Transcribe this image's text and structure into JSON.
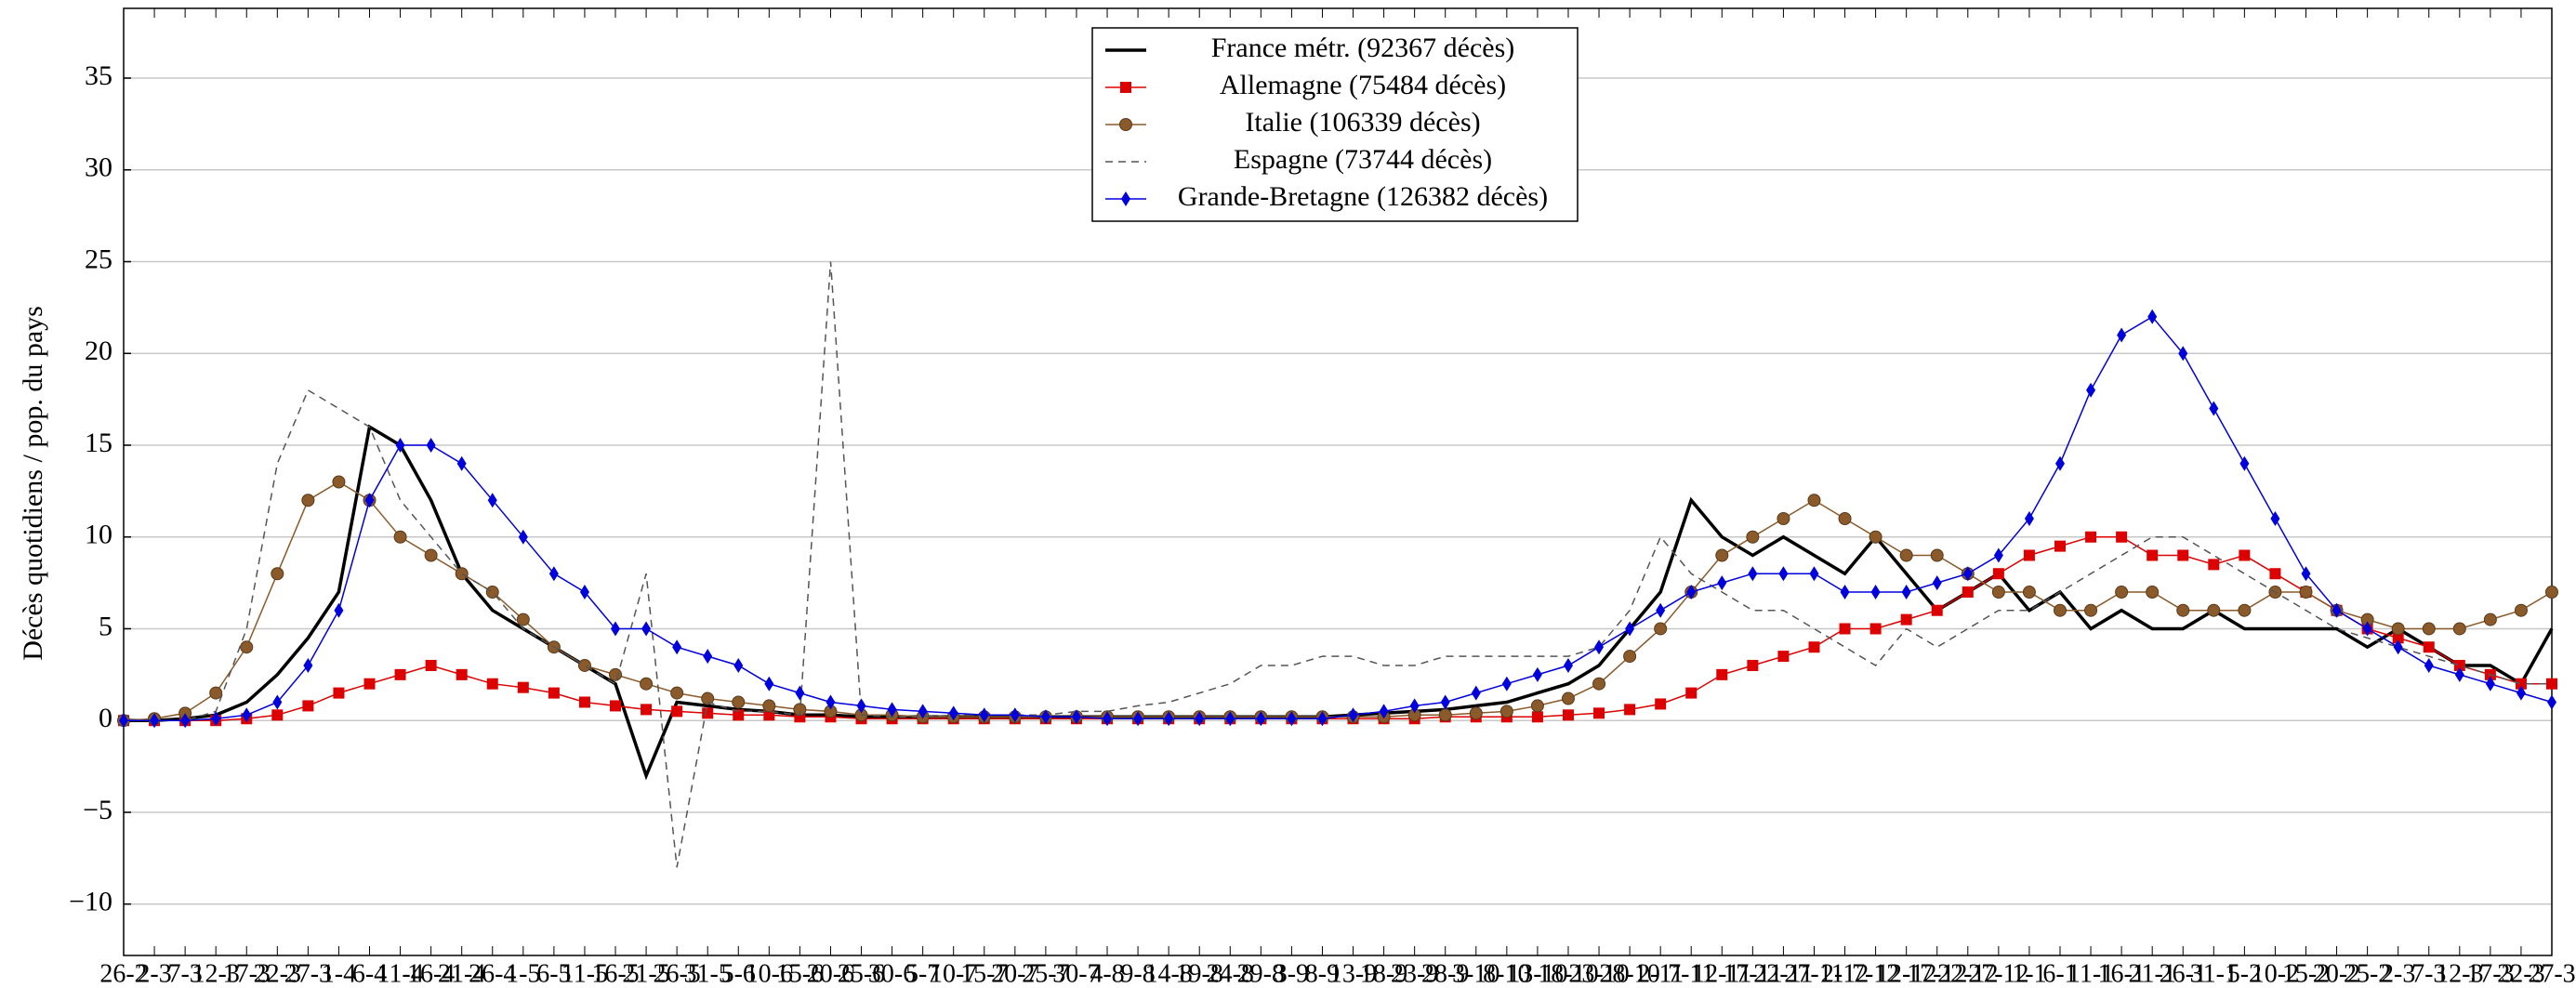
{
  "chart_data": {
    "type": "line",
    "ylabel": "Décès quotidiens / pop. du pays",
    "categories": [
      "26-2",
      "2-3",
      "7-3",
      "12-3",
      "17-3",
      "22-3",
      "27-3",
      "1-4",
      "6-4",
      "11-4",
      "16-4",
      "21-4",
      "26-4",
      "1-5",
      "6-5",
      "11-5",
      "16-5",
      "21-5",
      "26-5",
      "31-5",
      "5-6",
      "10-6",
      "15-6",
      "20-6",
      "25-6",
      "30-6",
      "5-7",
      "10-7",
      "15-7",
      "20-7",
      "25-7",
      "30-7",
      "4-8",
      "9-8",
      "14-8",
      "19-8",
      "24-8",
      "29-8",
      "3-9",
      "8-9",
      "13-9",
      "18-9",
      "23-9",
      "28-9",
      "3-10",
      "8-10",
      "13-10",
      "18-10",
      "23-10",
      "28-10",
      "2-11",
      "7-11",
      "12-11",
      "17-11",
      "22-11",
      "27-11",
      "2-12",
      "7-12",
      "12-12",
      "17-12",
      "22-12",
      "27-12",
      "1-1",
      "6-1",
      "11-1",
      "16-1",
      "21-1",
      "26-1",
      "31-1",
      "5-2",
      "10-2",
      "15-2",
      "20-2",
      "25-2",
      "2-3",
      "7-3",
      "12-3",
      "17-3",
      "22-3",
      "27-3"
    ],
    "series": [
      {
        "name": "France métr. (92367 décès)",
        "color": "#000000",
        "linestyle": "solid",
        "marker": null,
        "values": [
          0,
          0,
          0.1,
          0.3,
          1,
          2.5,
          4.5,
          7,
          16,
          15,
          12,
          8,
          6,
          5,
          4,
          3,
          2,
          -3,
          1,
          0.8,
          0.6,
          0.5,
          0.3,
          0.3,
          0.2,
          0.2,
          0.2,
          0.2,
          0.2,
          0.2,
          0.2,
          0.2,
          0.2,
          0.2,
          0.2,
          0.2,
          0.2,
          0.2,
          0.2,
          0.2,
          0.3,
          0.4,
          0.5,
          0.6,
          0.8,
          1,
          1.5,
          2,
          3,
          5,
          7,
          12,
          10,
          9,
          10,
          9,
          8,
          10,
          8,
          6,
          7,
          8,
          6,
          7,
          5,
          6,
          5,
          5,
          6,
          5,
          5,
          5,
          5,
          4,
          5,
          4,
          3,
          3,
          2,
          5
        ]
      },
      {
        "name": "Allemagne (75484 décès)",
        "color": "#dd0000",
        "linestyle": "solid",
        "marker": "square",
        "values": [
          0,
          0,
          0,
          0,
          0.1,
          0.3,
          0.8,
          1.5,
          2,
          2.5,
          3,
          2.5,
          2,
          1.8,
          1.5,
          1,
          0.8,
          0.6,
          0.5,
          0.4,
          0.3,
          0.3,
          0.2,
          0.2,
          0.1,
          0.1,
          0.1,
          0.1,
          0.1,
          0.1,
          0.1,
          0.1,
          0.1,
          0.1,
          0.1,
          0.1,
          0.1,
          0.1,
          0.1,
          0.1,
          0.1,
          0.1,
          0.1,
          0.2,
          0.2,
          0.2,
          0.2,
          0.3,
          0.4,
          0.6,
          0.9,
          1.5,
          2.5,
          3,
          3.5,
          4,
          5,
          5,
          5.5,
          6,
          7,
          8,
          9,
          9.5,
          10,
          10,
          9,
          9,
          8.5,
          9,
          8,
          7,
          6,
          5,
          4.5,
          4,
          3,
          2.5,
          2,
          2
        ]
      },
      {
        "name": "Italie (106339 décès)",
        "color": "#8b5a2b",
        "linestyle": "solid",
        "marker": "circle",
        "values": [
          0,
          0.1,
          0.4,
          1.5,
          4,
          8,
          12,
          13,
          12,
          10,
          9,
          8,
          7,
          5.5,
          4,
          3,
          2.5,
          2,
          1.5,
          1.2,
          1,
          0.8,
          0.6,
          0.5,
          0.3,
          0.3,
          0.2,
          0.2,
          0.2,
          0.2,
          0.2,
          0.2,
          0.2,
          0.2,
          0.2,
          0.2,
          0.2,
          0.2,
          0.2,
          0.2,
          0.2,
          0.2,
          0.3,
          0.3,
          0.4,
          0.5,
          0.8,
          1.2,
          2,
          3.5,
          5,
          7,
          9,
          10,
          11,
          12,
          11,
          10,
          9,
          9,
          8,
          7,
          7,
          6,
          6,
          7,
          7,
          6,
          6,
          6,
          7,
          7,
          6,
          5.5,
          5,
          5,
          5,
          5.5,
          6,
          7
        ]
      },
      {
        "name": "Espagne (73744 décès)",
        "color": "#555555",
        "linestyle": "dashed",
        "marker": null,
        "values": [
          0,
          0,
          0,
          0.5,
          5,
          14,
          18,
          17,
          16,
          12,
          10,
          8,
          7,
          5,
          4,
          3,
          2,
          8,
          -8,
          1,
          0.5,
          0.5,
          0.3,
          25,
          0.3,
          0.2,
          0.2,
          0.3,
          0.3,
          0.3,
          0.3,
          0.5,
          0.5,
          0.8,
          1,
          1.5,
          2,
          3,
          3,
          3.5,
          3.5,
          3,
          3,
          3.5,
          3.5,
          3.5,
          3.5,
          3.5,
          4,
          6,
          10,
          8,
          7,
          6,
          6,
          5,
          4,
          3,
          5,
          4,
          5,
          6,
          6,
          7,
          8,
          9,
          10,
          10,
          9,
          8,
          7,
          6,
          5,
          4.5,
          4,
          3.5,
          3,
          2.5,
          2,
          2
        ]
      },
      {
        "name": "Grande-Bretagne (126382 décès)",
        "color": "#0000dd",
        "linestyle": "solid",
        "marker": "diamond",
        "values": [
          0,
          0,
          0,
          0.1,
          0.3,
          1,
          3,
          6,
          12,
          15,
          15,
          14,
          12,
          10,
          8,
          7,
          5,
          5,
          4,
          3.5,
          3,
          2,
          1.5,
          1,
          0.8,
          0.6,
          0.5,
          0.4,
          0.3,
          0.3,
          0.2,
          0.2,
          0.1,
          0.1,
          0.1,
          0.1,
          0.1,
          0.1,
          0.1,
          0.1,
          0.3,
          0.5,
          0.8,
          1,
          1.5,
          2,
          2.5,
          3,
          4,
          5,
          6,
          7,
          7.5,
          8,
          8,
          8,
          7,
          7,
          7,
          7.5,
          8,
          9,
          11,
          14,
          18,
          21,
          22,
          20,
          17,
          14,
          11,
          8,
          6,
          5,
          4,
          3,
          2.5,
          2,
          1.5,
          1
        ]
      }
    ],
    "ylim": [
      -12.8,
      38.8
    ],
    "yticks": [
      {
        "value": -10,
        "label": "−10"
      },
      {
        "value": -5,
        "label": "−5"
      },
      0,
      5,
      10,
      15,
      20,
      25,
      30,
      35
    ],
    "grid": true,
    "legend": "top"
  }
}
